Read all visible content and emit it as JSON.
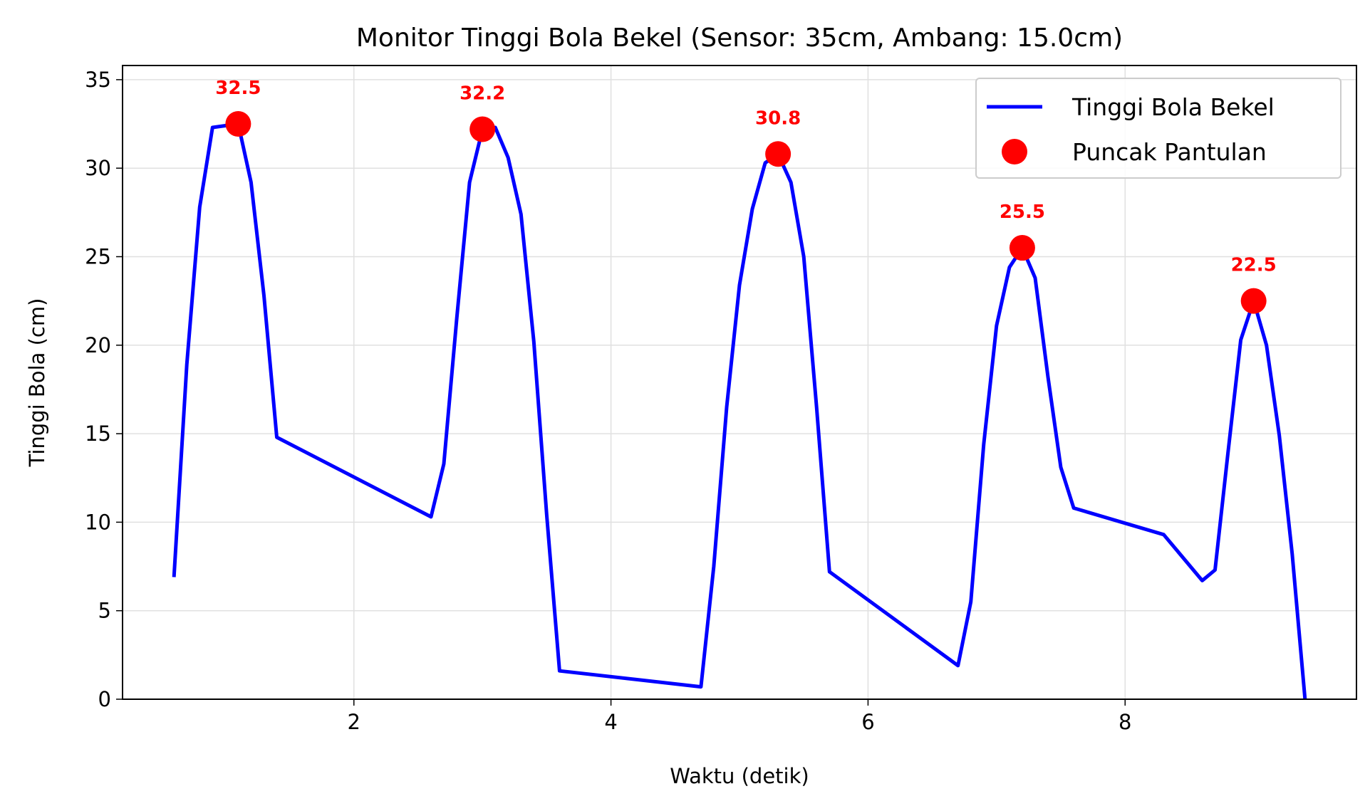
{
  "chart_data": {
    "type": "line",
    "title": "Monitor Tinggi Bola Bekel (Sensor: 35cm, Ambang: 15.0cm)",
    "xlabel": "Waktu (detik)",
    "ylabel": "Tinggi Bola (cm)",
    "xlim": [
      0.2,
      9.8
    ],
    "ylim": [
      0,
      35.8
    ],
    "xticks": [
      2,
      4,
      6,
      8
    ],
    "yticks": [
      0,
      5,
      10,
      15,
      20,
      25,
      30,
      35
    ],
    "grid": true,
    "legend_position": "top-right",
    "series": [
      {
        "name": "Tinggi Bola Bekel",
        "color": "#0000ff",
        "style": "line",
        "x": [
          0.6,
          0.7,
          0.8,
          0.9,
          1.0,
          1.1,
          1.2,
          1.3,
          1.4,
          2.6,
          2.7,
          2.8,
          2.9,
          3.0,
          3.1,
          3.2,
          3.3,
          3.4,
          3.5,
          3.6,
          4.7,
          4.8,
          4.9,
          5.0,
          5.1,
          5.2,
          5.3,
          5.4,
          5.5,
          5.6,
          5.7,
          6.7,
          6.8,
          6.9,
          7.0,
          7.1,
          7.2,
          7.3,
          7.4,
          7.5,
          7.6,
          8.3,
          8.6,
          8.7,
          8.8,
          8.9,
          9.0,
          9.1,
          9.2,
          9.3,
          9.4
        ],
        "y": [
          6.9,
          18.9,
          27.8,
          32.3,
          32.4,
          32.5,
          29.2,
          22.8,
          14.8,
          10.3,
          13.3,
          21.5,
          29.2,
          32.2,
          32.3,
          30.6,
          27.4,
          20.2,
          10.4,
          1.6,
          0.7,
          7.5,
          16.5,
          23.4,
          27.7,
          30.3,
          30.8,
          29.2,
          25.0,
          16.5,
          7.2,
          1.9,
          5.5,
          14.4,
          21.1,
          24.4,
          25.5,
          23.8,
          18.2,
          13.1,
          10.8,
          9.3,
          6.7,
          7.3,
          13.9,
          20.3,
          22.5,
          20.0,
          14.9,
          8.2,
          0.0
        ]
      },
      {
        "name": "Puncak Pantulan",
        "color": "#ff0000",
        "style": "markers",
        "x": [
          1.1,
          3.0,
          5.3,
          7.2,
          9.0
        ],
        "y": [
          32.5,
          32.2,
          30.8,
          25.5,
          22.5
        ],
        "labels": [
          "32.5",
          "32.2",
          "30.8",
          "25.5",
          "22.5"
        ]
      }
    ]
  }
}
